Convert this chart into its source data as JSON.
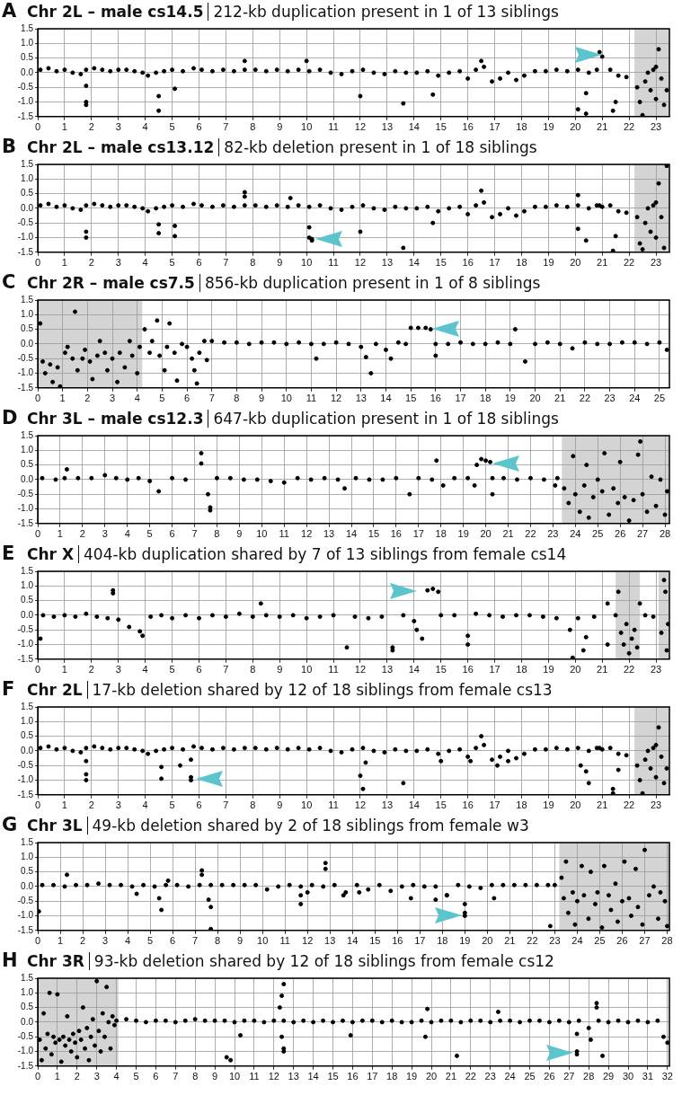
{
  "chart_data": [
    {
      "type": "scatter",
      "title": "Chr 2L – male cs14.5",
      "subtitle": "212-kb duplication present in 1 of 13 siblings",
      "annotations": [
        "A"
      ],
      "color": "#000000",
      "marker": "circle",
      "grid": true,
      "x": [
        0.1,
        0.4,
        0.7,
        1.0,
        1.3,
        1.6,
        1.8,
        2.1,
        2.4,
        2.7,
        3.0,
        3.3,
        3.6,
        3.9,
        4.1,
        4.4,
        4.7,
        5.0,
        5.4,
        5.8,
        6.1,
        6.5,
        6.9,
        7.3,
        7.7,
        8.1,
        8.5,
        8.9,
        9.3,
        9.7,
        10.1,
        10.5,
        10.9,
        11.3,
        11.7,
        12.1,
        12.5,
        12.9,
        13.3,
        13.7,
        14.1,
        14.5,
        14.9,
        15.3,
        15.7,
        16.0,
        16.3,
        16.6,
        16.9,
        17.2,
        17.5,
        17.8,
        18.1,
        18.5,
        18.9,
        19.3,
        19.7,
        20.1,
        20.5,
        20.8,
        20.9,
        21.0,
        21.3,
        21.6,
        21.9,
        1.8,
        1.8,
        1.8,
        4.5,
        4.5,
        5.1,
        7.7,
        10.0,
        12.0,
        13.6,
        14.7,
        16.5,
        20.1,
        20.4,
        20.4,
        21.5,
        21.4,
        22.3,
        22.4,
        22.5,
        22.6,
        22.7,
        22.8,
        22.9,
        23.0,
        23.0,
        23.1,
        23.2,
        23.3,
        23.4
      ],
      "values": [
        0.1,
        0.15,
        0.05,
        0.1,
        0.0,
        -0.05,
        0.1,
        0.15,
        0.1,
        0.05,
        0.1,
        0.1,
        0.05,
        0.0,
        -0.1,
        0.0,
        0.05,
        0.1,
        0.05,
        0.15,
        0.1,
        0.05,
        0.1,
        0.05,
        0.1,
        0.1,
        0.05,
        0.1,
        0.05,
        0.1,
        0.05,
        0.1,
        0.0,
        -0.05,
        0.05,
        0.1,
        0.0,
        -0.05,
        0.05,
        0.0,
        0.0,
        0.05,
        -0.1,
        0.0,
        0.05,
        -0.2,
        0.1,
        0.2,
        -0.3,
        -0.2,
        0.0,
        -0.25,
        -0.1,
        0.05,
        0.05,
        0.1,
        0.05,
        0.1,
        0.0,
        0.1,
        0.7,
        0.55,
        0.1,
        -0.1,
        -0.15,
        -1.0,
        -1.1,
        -0.45,
        -1.3,
        -0.8,
        -0.55,
        0.4,
        0.4,
        -0.8,
        -1.05,
        -0.75,
        0.4,
        -1.25,
        -1.4,
        -0.7,
        -1.0,
        -1.3,
        -0.5,
        -1.0,
        -1.45,
        -0.3,
        0.0,
        -0.6,
        0.1,
        -0.9,
        0.2,
        0.8,
        -0.2,
        -1.1,
        -0.6
      ],
      "xlim": [
        0,
        23.5
      ],
      "xticks": [
        0,
        1,
        2,
        3,
        4,
        5,
        6,
        7,
        8,
        9,
        10,
        11,
        12,
        13,
        14,
        15,
        16,
        17,
        18,
        19,
        20,
        21,
        22,
        23
      ],
      "ylim": [
        -1.5,
        1.5
      ],
      "yticks": [
        {
          "value": -1.5,
          "label": "-1.5"
        },
        {
          "value": -1,
          "label": "-1.0"
        },
        {
          "value": -0.5,
          "label": "-0.5"
        },
        {
          "value": 0,
          "label": "0.0"
        },
        {
          "value": 0.5,
          "label": "0.5"
        },
        {
          "value": 1,
          "label": "1.0"
        },
        {
          "value": 1.5,
          "label": "1.5"
        }
      ],
      "bands": [
        {
          "axis": "x",
          "from": 22.2,
          "to": 23.5,
          "color": "#d4d4d4"
        }
      ]
    },
    {
      "type": "scatter",
      "title": "Chr 2L – male cs13.12",
      "subtitle": "82-kb deletion present in 1 of 18 siblings",
      "annotations": [
        "B"
      ],
      "color": "#000000",
      "marker": "circle",
      "grid": true,
      "x": [
        0.1,
        0.4,
        0.7,
        1.0,
        1.3,
        1.6,
        1.8,
        2.1,
        2.4,
        2.7,
        3.0,
        3.3,
        3.6,
        3.9,
        4.1,
        4.4,
        4.7,
        5.0,
        5.4,
        5.8,
        6.1,
        6.5,
        6.9,
        7.3,
        7.7,
        8.1,
        8.5,
        8.9,
        9.3,
        9.7,
        10.1,
        10.5,
        10.9,
        11.3,
        11.7,
        12.1,
        12.5,
        12.9,
        13.3,
        13.7,
        14.1,
        14.5,
        14.9,
        15.3,
        15.7,
        16.0,
        16.3,
        16.6,
        16.9,
        17.2,
        17.5,
        17.8,
        18.1,
        18.5,
        18.9,
        19.3,
        19.7,
        20.1,
        20.5,
        20.8,
        20.9,
        21.0,
        21.3,
        21.6,
        21.9,
        1.8,
        1.8,
        4.5,
        4.5,
        5.1,
        5.1,
        7.7,
        7.7,
        9.4,
        10.1,
        10.1,
        10.2,
        10.2,
        12.0,
        13.6,
        14.7,
        16.5,
        20.1,
        20.1,
        20.4,
        21.4,
        21.5,
        22.3,
        22.4,
        22.5,
        22.6,
        22.7,
        22.8,
        22.9,
        23.0,
        23.0,
        23.1,
        23.2,
        23.3,
        23.4
      ],
      "values": [
        0.1,
        0.15,
        0.05,
        0.1,
        0.0,
        -0.05,
        0.1,
        0.15,
        0.1,
        0.05,
        0.1,
        0.1,
        0.05,
        0.0,
        -0.1,
        0.0,
        0.05,
        0.1,
        0.05,
        0.15,
        0.1,
        0.05,
        0.1,
        0.05,
        0.1,
        0.1,
        0.05,
        0.1,
        0.05,
        0.1,
        0.05,
        0.1,
        0.0,
        -0.05,
        0.05,
        0.1,
        0.0,
        -0.05,
        0.05,
        0.0,
        0.0,
        0.05,
        -0.1,
        0.0,
        0.05,
        -0.2,
        0.1,
        0.2,
        -0.3,
        -0.2,
        0.0,
        -0.25,
        -0.1,
        0.05,
        0.05,
        0.1,
        0.05,
        0.1,
        0.0,
        0.1,
        0.1,
        0.05,
        0.1,
        -0.1,
        -0.15,
        -0.8,
        -1.0,
        -0.55,
        -0.85,
        -0.6,
        -0.95,
        0.55,
        0.4,
        0.35,
        -0.65,
        -1.0,
        -1.05,
        -1.1,
        -0.8,
        -1.35,
        -0.5,
        0.6,
        0.45,
        -0.7,
        -1.1,
        -1.45,
        -0.95,
        -0.3,
        -1.2,
        -1.4,
        -0.5,
        0.0,
        -0.8,
        0.1,
        -1.0,
        0.2,
        0.85,
        -0.3,
        -1.35,
        1.45
      ],
      "xlim": [
        0,
        23.5
      ],
      "xticks": [
        0,
        1,
        2,
        3,
        4,
        5,
        6,
        7,
        8,
        9,
        10,
        11,
        12,
        13,
        14,
        15,
        16,
        17,
        18,
        19,
        20,
        21,
        22,
        23
      ],
      "ylim": [
        -1.5,
        1.5
      ],
      "yticks": [
        {
          "value": -1.5,
          "label": "-1.5"
        },
        {
          "value": -1,
          "label": "-1.0"
        },
        {
          "value": -0.5,
          "label": "-0.5"
        },
        {
          "value": 0,
          "label": "0.0"
        },
        {
          "value": 0.5,
          "label": "0.5"
        },
        {
          "value": 1,
          "label": "1.0"
        },
        {
          "value": 1.5,
          "label": "1.5"
        }
      ],
      "bands": [
        {
          "axis": "x",
          "from": 22.2,
          "to": 23.5,
          "color": "#d4d4d4"
        }
      ]
    },
    {
      "type": "scatter",
      "title": "Chr 2R – male cs7.5",
      "subtitle": "856-kb duplication present in 1 of 8 siblings",
      "annotations": [
        "C"
      ],
      "color": "#000000",
      "marker": "circle",
      "grid": true,
      "x": [
        0.1,
        0.2,
        0.3,
        0.5,
        0.6,
        0.8,
        0.9,
        1.1,
        1.2,
        1.4,
        1.5,
        1.6,
        1.8,
        1.9,
        2.1,
        2.2,
        2.4,
        2.5,
        2.7,
        2.8,
        3.0,
        3.2,
        3.3,
        3.5,
        3.7,
        3.8,
        4.0,
        4.1,
        4.3,
        4.5,
        4.6,
        4.8,
        4.9,
        5.1,
        5.2,
        5.3,
        5.5,
        5.6,
        5.8,
        6.0,
        6.2,
        6.3,
        6.4,
        6.5,
        6.7,
        6.8,
        7.0,
        7.5,
        8.0,
        8.5,
        9.0,
        9.5,
        10.0,
        10.5,
        11.0,
        11.2,
        11.5,
        12.0,
        12.5,
        13.0,
        13.2,
        13.4,
        13.6,
        14.0,
        14.2,
        14.5,
        14.8,
        15.0,
        15.3,
        15.6,
        15.8,
        16.0,
        16.0,
        16.5,
        17.0,
        17.5,
        18.0,
        18.5,
        19.0,
        19.2,
        19.6,
        20.0,
        20.5,
        21.0,
        21.5,
        22.0,
        22.5,
        23.0,
        23.5,
        24.0,
        24.5,
        25.0,
        25.3
      ],
      "values": [
        0.7,
        -0.6,
        -1.0,
        -0.7,
        -1.3,
        -0.8,
        -1.45,
        -0.3,
        -0.1,
        -0.5,
        1.1,
        -0.9,
        -0.5,
        -0.2,
        -0.6,
        -1.2,
        -0.4,
        0.1,
        -0.3,
        -0.9,
        -0.5,
        -1.3,
        -0.3,
        -0.8,
        0.1,
        -0.4,
        -1.0,
        -0.1,
        0.5,
        -0.3,
        0.1,
        0.8,
        -0.4,
        -0.9,
        -0.1,
        0.7,
        -0.3,
        -1.25,
        0.0,
        -0.1,
        -0.5,
        -0.9,
        -1.35,
        -0.3,
        0.1,
        -0.55,
        0.1,
        0.05,
        0.05,
        0.0,
        0.05,
        0.05,
        0.0,
        0.05,
        0.0,
        -0.5,
        0.0,
        0.05,
        0.0,
        -0.1,
        -0.45,
        -1.0,
        0.0,
        -0.2,
        -0.5,
        0.05,
        0.0,
        0.55,
        0.55,
        0.55,
        0.5,
        0.0,
        -0.4,
        0.0,
        0.05,
        0.0,
        0.0,
        0.05,
        0.0,
        0.5,
        -0.6,
        0.0,
        0.05,
        0.0,
        -0.15,
        0.05,
        0.0,
        0.0,
        0.05,
        0.05,
        0.0,
        0.05,
        -0.2
      ],
      "xlim": [
        0,
        25.4
      ],
      "xticks": [
        0,
        1,
        2,
        3,
        4,
        5,
        6,
        7,
        8,
        9,
        10,
        11,
        12,
        13,
        14,
        15,
        16,
        17,
        18,
        19,
        20,
        21,
        22,
        23,
        24,
        25
      ],
      "ylim": [
        -1.5,
        1.5
      ],
      "yticks": [
        {
          "value": -1.5,
          "label": "-1.5"
        },
        {
          "value": -1,
          "label": "-1.0"
        },
        {
          "value": -0.5,
          "label": "-0.5"
        },
        {
          "value": 0,
          "label": "0.0"
        },
        {
          "value": 0.5,
          "label": "0.5"
        },
        {
          "value": 1,
          "label": "1.0"
        },
        {
          "value": 1.5,
          "label": "1.5"
        }
      ],
      "bands": [
        {
          "axis": "x",
          "from": 0,
          "to": 4.2,
          "color": "#d4d4d4"
        }
      ]
    },
    {
      "type": "scatter",
      "title": "Chr 3L – male cs12.3",
      "subtitle": "647-kb duplication present in 1 of 18 siblings",
      "annotations": [
        "D"
      ],
      "color": "#000000",
      "marker": "circle",
      "grid": true,
      "x": [
        0.2,
        0.8,
        1.2,
        1.3,
        1.8,
        2.4,
        3.0,
        3.5,
        4.0,
        4.5,
        5.0,
        5.4,
        6.0,
        6.6,
        7.3,
        7.3,
        7.6,
        7.7,
        7.7,
        8.0,
        8.6,
        9.2,
        9.8,
        10.4,
        11.0,
        11.6,
        12.2,
        12.8,
        13.4,
        13.7,
        14.2,
        14.8,
        15.4,
        16.0,
        16.6,
        17.0,
        17.6,
        17.8,
        18.1,
        18.6,
        19.2,
        19.5,
        19.6,
        19.8,
        20.0,
        20.2,
        20.3,
        20.3,
        20.8,
        21.4,
        22.0,
        22.6,
        23.1,
        23.2,
        23.5,
        23.7,
        23.9,
        24.0,
        24.2,
        24.4,
        24.5,
        24.6,
        24.8,
        25.0,
        25.2,
        25.3,
        25.5,
        25.7,
        25.9,
        26.0,
        26.2,
        26.4,
        26.6,
        26.8,
        26.9,
        27.0,
        27.2,
        27.4,
        27.6,
        27.8,
        28.0,
        28.1
      ],
      "values": [
        0.05,
        0.0,
        0.05,
        0.35,
        0.05,
        0.05,
        0.15,
        0.05,
        0.0,
        0.05,
        -0.05,
        -0.4,
        0.05,
        0.0,
        0.9,
        0.55,
        -0.5,
        -1.05,
        -0.95,
        0.05,
        0.05,
        0.0,
        0.0,
        -0.05,
        -0.1,
        0.05,
        0.0,
        0.05,
        0.0,
        -0.3,
        0.05,
        0.0,
        0.0,
        0.05,
        -0.5,
        0.05,
        0.0,
        0.65,
        -0.2,
        0.05,
        0.05,
        -0.2,
        0.5,
        0.7,
        0.65,
        0.6,
        0.05,
        -0.5,
        0.05,
        0.0,
        0.05,
        0.0,
        -0.2,
        0.05,
        -0.3,
        -0.8,
        0.8,
        -0.5,
        -1.1,
        -0.2,
        0.5,
        -1.3,
        -0.6,
        0.0,
        -0.4,
        0.9,
        -1.2,
        -0.3,
        -0.8,
        0.6,
        -0.6,
        -1.4,
        -0.7,
        0.85,
        1.3,
        -0.5,
        -1.1,
        0.1,
        -0.9,
        0.0,
        -1.2,
        -0.4
      ],
      "xlim": [
        0,
        28.2
      ],
      "xticks": [
        0,
        1,
        2,
        3,
        4,
        5,
        6,
        7,
        8,
        9,
        10,
        11,
        12,
        13,
        14,
        15,
        16,
        17,
        18,
        19,
        20,
        21,
        22,
        23,
        24,
        25,
        26,
        27,
        28
      ],
      "ylim": [
        -1.5,
        1.5
      ],
      "yticks": [
        {
          "value": -1.5,
          "label": "-1.5"
        },
        {
          "value": -1,
          "label": "-1.0"
        },
        {
          "value": -0.5,
          "label": "-0.5"
        },
        {
          "value": 0,
          "label": "0.0"
        },
        {
          "value": 0.5,
          "label": "0.5"
        },
        {
          "value": 1,
          "label": "1.0"
        },
        {
          "value": 1.5,
          "label": "1.5"
        }
      ],
      "bands": [
        {
          "axis": "x",
          "from": 23.4,
          "to": 28.2,
          "color": "#d4d4d4"
        }
      ]
    },
    {
      "type": "scatter",
      "title": "Chr X",
      "subtitle": "404-kb duplication shared by 7 of 13 siblings from female cs14",
      "annotations": [
        "E"
      ],
      "color": "#000000",
      "marker": "circle",
      "grid": true,
      "x": [
        0.1,
        0.2,
        0.6,
        1.0,
        1.4,
        1.8,
        2.2,
        2.6,
        2.8,
        2.8,
        3.0,
        3.4,
        3.8,
        3.9,
        4.2,
        4.6,
        5.0,
        5.5,
        6.0,
        6.5,
        7.0,
        7.5,
        8.0,
        8.3,
        8.5,
        9.0,
        9.5,
        10.0,
        10.5,
        11.0,
        11.5,
        11.8,
        12.3,
        12.8,
        13.2,
        13.2,
        13.6,
        14.0,
        14.1,
        14.3,
        14.5,
        14.7,
        14.9,
        15.0,
        15.5,
        16.0,
        16.0,
        16.3,
        16.8,
        17.3,
        17.8,
        18.3,
        18.8,
        19.3,
        19.8,
        19.9,
        20.1,
        20.3,
        20.4,
        20.7,
        21.2,
        21.2,
        21.5,
        21.6,
        21.7,
        21.8,
        21.9,
        22.0,
        22.1,
        22.2,
        22.3,
        22.4,
        22.6,
        22.9,
        23.2,
        23.3,
        23.35,
        23.4,
        23.45
      ],
      "values": [
        -0.8,
        0.0,
        -0.05,
        0.0,
        -0.05,
        0.05,
        -0.05,
        -0.1,
        0.85,
        0.75,
        -0.15,
        -0.4,
        -0.55,
        -0.7,
        -0.05,
        0.0,
        -0.1,
        0.0,
        -0.1,
        0.0,
        -0.05,
        0.05,
        -0.05,
        0.4,
        0.0,
        -0.05,
        0.0,
        -0.1,
        -0.05,
        0.0,
        -1.1,
        -0.05,
        -0.1,
        -0.05,
        -1.2,
        -1.1,
        0.0,
        -0.2,
        -0.5,
        -0.8,
        0.85,
        0.9,
        0.8,
        0.0,
        0.0,
        -0.7,
        -1.0,
        0.05,
        0.0,
        -0.05,
        0.0,
        0.0,
        -0.05,
        -0.1,
        -0.5,
        -1.45,
        -0.1,
        -1.2,
        -0.75,
        -0.05,
        -1.0,
        0.4,
        0.0,
        0.8,
        -0.6,
        -1.0,
        -0.3,
        -1.3,
        -0.8,
        -0.5,
        -1.1,
        0.4,
        0.0,
        -0.05,
        -0.6,
        1.2,
        0.8,
        -1.2,
        -0.3
      ],
      "xlim": [
        0,
        23.5
      ],
      "xticks": [
        0,
        1,
        2,
        3,
        4,
        5,
        6,
        7,
        8,
        9,
        10,
        11,
        12,
        13,
        14,
        15,
        16,
        17,
        18,
        19,
        20,
        21,
        22,
        23
      ],
      "ylim": [
        -1.5,
        1.5
      ],
      "yticks": [
        {
          "value": -1.5,
          "label": "-1.5"
        },
        {
          "value": -1,
          "label": "-1.0"
        },
        {
          "value": -0.5,
          "label": "-0.5"
        },
        {
          "value": 0,
          "label": "0.0"
        },
        {
          "value": 0.5,
          "label": "0.5"
        },
        {
          "value": 1,
          "label": "1.0"
        },
        {
          "value": 1.5,
          "label": "1.5"
        }
      ],
      "bands": [
        {
          "axis": "x",
          "from": 21.5,
          "to": 22.4,
          "color": "#d4d4d4"
        },
        {
          "axis": "x",
          "from": 23.1,
          "to": 23.5,
          "color": "#d4d4d4"
        }
      ]
    },
    {
      "type": "scatter",
      "title": "Chr 2L",
      "subtitle": "17-kb deletion shared by 12 of 18 siblings from female cs13",
      "annotations": [
        "F"
      ],
      "color": "#000000",
      "marker": "circle",
      "grid": true,
      "x": [
        0.1,
        0.4,
        0.7,
        1.0,
        1.3,
        1.6,
        1.8,
        2.1,
        2.4,
        2.7,
        3.0,
        3.3,
        3.6,
        3.9,
        4.1,
        4.4,
        4.7,
        5.0,
        5.4,
        5.8,
        6.1,
        6.5,
        6.9,
        7.3,
        7.7,
        8.1,
        8.5,
        8.9,
        9.3,
        9.7,
        10.1,
        10.5,
        10.9,
        11.3,
        11.7,
        12.1,
        12.5,
        12.9,
        13.3,
        13.7,
        14.1,
        14.5,
        14.9,
        15.3,
        15.7,
        16.0,
        16.3,
        16.6,
        16.9,
        17.2,
        17.5,
        17.8,
        18.1,
        18.5,
        18.9,
        19.3,
        19.7,
        20.1,
        20.5,
        20.8,
        20.9,
        21.0,
        21.3,
        21.6,
        21.9,
        1.8,
        1.8,
        1.8,
        4.6,
        4.6,
        5.3,
        5.7,
        5.7,
        5.7,
        12.0,
        12.1,
        12.2,
        13.6,
        15.0,
        16.5,
        16.1,
        17.1,
        17.5,
        20.2,
        20.4,
        20.5,
        21.4,
        21.6,
        21.4,
        22.3,
        22.4,
        22.5,
        22.6,
        22.7,
        22.8,
        22.9,
        23.0,
        23.0,
        23.1,
        23.2,
        23.3,
        23.4
      ],
      "values": [
        0.1,
        0.15,
        0.05,
        0.1,
        0.0,
        -0.05,
        0.1,
        0.15,
        0.1,
        0.05,
        0.1,
        0.1,
        0.05,
        0.0,
        -0.1,
        0.0,
        0.05,
        0.1,
        0.05,
        0.15,
        0.1,
        0.05,
        0.1,
        0.05,
        0.1,
        0.1,
        0.05,
        0.1,
        0.05,
        0.1,
        0.05,
        0.1,
        0.0,
        -0.05,
        0.05,
        0.1,
        0.0,
        -0.05,
        0.05,
        0.0,
        0.0,
        0.05,
        -0.1,
        0.0,
        0.05,
        -0.2,
        0.1,
        0.2,
        -0.3,
        -0.2,
        0.0,
        -0.25,
        -0.1,
        0.05,
        0.05,
        0.1,
        0.05,
        0.1,
        0.0,
        0.1,
        0.1,
        0.05,
        0.1,
        -0.1,
        -0.15,
        -0.8,
        -1.0,
        -0.35,
        -0.55,
        -0.95,
        -0.5,
        -0.9,
        -1.0,
        -0.3,
        -0.85,
        -1.3,
        -0.4,
        -1.1,
        -0.35,
        0.5,
        -0.35,
        -0.5,
        -0.35,
        -0.5,
        -0.7,
        -1.1,
        -1.3,
        -0.65,
        -1.45,
        -0.5,
        -1.0,
        -1.45,
        -0.3,
        0.0,
        -0.6,
        0.1,
        -0.9,
        0.2,
        0.8,
        -0.2,
        -1.1,
        -0.6
      ],
      "xlim": [
        0,
        23.5
      ],
      "xticks": [
        0,
        1,
        2,
        3,
        4,
        5,
        6,
        7,
        8,
        9,
        10,
        11,
        12,
        13,
        14,
        15,
        16,
        17,
        18,
        19,
        20,
        21,
        22,
        23
      ],
      "ylim": [
        -1.5,
        1.5
      ],
      "yticks": [
        {
          "value": -1.5,
          "label": "-1.5"
        },
        {
          "value": -1,
          "label": "-1.0"
        },
        {
          "value": -0.5,
          "label": "-0.5"
        },
        {
          "value": 0,
          "label": "0.0"
        },
        {
          "value": 0.5,
          "label": "0.5"
        },
        {
          "value": 1,
          "label": "1.0"
        },
        {
          "value": 1.5,
          "label": "1.5"
        }
      ],
      "bands": [
        {
          "axis": "x",
          "from": 22.2,
          "to": 23.5,
          "color": "#d4d4d4"
        }
      ]
    },
    {
      "type": "scatter",
      "title": "Chr 3L",
      "subtitle": "49-kb deletion shared by 2 of 18 siblings from female w3",
      "annotations": [
        "G"
      ],
      "color": "#000000",
      "marker": "circle",
      "grid": true,
      "x": [
        0.2,
        0.7,
        1.2,
        1.7,
        2.2,
        2.7,
        3.2,
        3.7,
        4.2,
        4.7,
        5.2,
        5.7,
        6.2,
        6.7,
        7.2,
        7.7,
        8.2,
        8.7,
        9.2,
        9.7,
        10.2,
        10.7,
        11.2,
        11.7,
        12.2,
        12.7,
        13.2,
        13.7,
        14.2,
        14.7,
        15.2,
        15.7,
        16.2,
        16.7,
        17.2,
        17.7,
        18.2,
        18.7,
        19.2,
        19.7,
        20.2,
        20.7,
        21.2,
        21.7,
        22.2,
        22.7,
        23.0,
        0.05,
        1.3,
        4.4,
        5.4,
        5.5,
        5.8,
        7.3,
        7.3,
        7.6,
        7.7,
        7.7,
        11.7,
        11.7,
        12.0,
        12.8,
        12.8,
        13.6,
        14.3,
        16.6,
        17.7,
        18.2,
        19.0,
        19.0,
        19.0,
        20.3,
        22.8,
        23.3,
        23.4,
        23.5,
        23.6,
        23.8,
        23.9,
        24.0,
        24.2,
        24.3,
        24.5,
        24.6,
        24.8,
        24.9,
        25.1,
        25.2,
        25.4,
        25.5,
        25.7,
        25.8,
        26.0,
        26.1,
        26.3,
        26.4,
        26.6,
        26.7,
        26.9,
        27.0,
        27.2,
        27.4,
        27.6,
        27.7,
        27.9,
        28.0
      ],
      "values": [
        0.05,
        0.05,
        0.0,
        0.05,
        0.05,
        0.1,
        0.05,
        0.05,
        0.0,
        0.05,
        0.0,
        0.05,
        0.05,
        0.0,
        0.05,
        0.05,
        0.05,
        0.05,
        0.05,
        0.05,
        -0.1,
        0.0,
        0.05,
        0.0,
        0.05,
        0.0,
        0.05,
        -0.2,
        0.05,
        -0.1,
        0.05,
        -0.15,
        0.0,
        0.05,
        0.0,
        0.0,
        -0.3,
        0.05,
        0.0,
        -0.05,
        0.05,
        0.05,
        0.05,
        0.05,
        0.05,
        0.05,
        0.05,
        -0.85,
        0.4,
        -0.25,
        -0.4,
        -0.8,
        0.2,
        0.55,
        0.4,
        -0.45,
        -0.7,
        -1.45,
        -0.6,
        -0.3,
        -0.2,
        0.8,
        0.6,
        -0.3,
        -0.2,
        -0.4,
        -0.45,
        -0.3,
        -0.9,
        -1.0,
        -0.6,
        -0.4,
        -1.35,
        0.3,
        -0.4,
        0.85,
        -0.9,
        -0.2,
        -1.3,
        -0.5,
        0.7,
        -0.3,
        -1.1,
        0.5,
        -0.6,
        -0.2,
        -1.4,
        0.7,
        -0.3,
        -0.8,
        0.1,
        -1.2,
        -0.5,
        0.85,
        -0.4,
        -1.0,
        0.6,
        -0.7,
        -1.3,
        1.25,
        -0.3,
        0.0,
        -1.1,
        -0.2,
        -0.5,
        -1.35
      ],
      "xlim": [
        0,
        28.1
      ],
      "xticks": [
        0,
        1,
        2,
        3,
        4,
        5,
        6,
        7,
        8,
        9,
        10,
        11,
        12,
        13,
        14,
        15,
        16,
        17,
        18,
        19,
        20,
        21,
        22,
        23,
        24,
        25,
        26,
        27,
        28
      ],
      "ylim": [
        -1.5,
        1.5
      ],
      "yticks": [
        {
          "value": -1.5,
          "label": "-1.5"
        },
        {
          "value": -1,
          "label": "-1.0"
        },
        {
          "value": -0.5,
          "label": "-0.5"
        },
        {
          "value": 0,
          "label": "0.0"
        },
        {
          "value": 0.5,
          "label": "0.5"
        },
        {
          "value": 1,
          "label": "1.0"
        },
        {
          "value": 1.5,
          "label": "1.5"
        }
      ],
      "bands": [
        {
          "axis": "x",
          "from": 23.2,
          "to": 28.1,
          "color": "#d4d4d4"
        }
      ]
    },
    {
      "type": "scatter",
      "title": "Chr 3R",
      "subtitle": "93-kb deletion shared by 12 of 18 siblings from female cs12",
      "annotations": [
        "H"
      ],
      "color": "#000000",
      "marker": "circle",
      "grid": true,
      "x": [
        0.1,
        0.2,
        0.3,
        0.4,
        0.5,
        0.6,
        0.7,
        0.8,
        0.9,
        1.0,
        1.1,
        1.2,
        1.3,
        1.4,
        1.5,
        1.6,
        1.7,
        1.8,
        1.9,
        2.0,
        2.1,
        2.2,
        2.3,
        2.4,
        2.5,
        2.6,
        2.7,
        2.8,
        2.9,
        3.0,
        3.1,
        3.2,
        3.3,
        3.4,
        3.5,
        3.6,
        3.7,
        3.8,
        3.9,
        4.0,
        4.5,
        5.0,
        5.5,
        6.0,
        6.5,
        7.0,
        7.5,
        8.0,
        8.5,
        9.0,
        9.5,
        10.0,
        10.5,
        11.0,
        11.5,
        12.0,
        12.5,
        13.0,
        13.5,
        14.0,
        14.5,
        15.0,
        15.5,
        16.0,
        16.5,
        17.0,
        17.5,
        18.0,
        18.5,
        19.0,
        19.5,
        20.0,
        20.5,
        21.0,
        21.5,
        22.0,
        22.5,
        23.0,
        23.5,
        24.0,
        24.5,
        25.0,
        25.5,
        26.0,
        26.5,
        27.0,
        27.5,
        28.0,
        28.5,
        29.0,
        29.5,
        30.0,
        30.5,
        31.0,
        31.5,
        9.6,
        9.8,
        10.3,
        12.3,
        12.4,
        12.5,
        12.4,
        12.5,
        12.5,
        15.9,
        19.8,
        19.7,
        21.3,
        23.4,
        27.4,
        27.4,
        27.4,
        28.1,
        28.4,
        28.4,
        28.7,
        31.8,
        32.0
      ],
      "values": [
        -0.6,
        -1.3,
        0.3,
        -0.9,
        -0.4,
        1.0,
        -1.1,
        -0.5,
        -0.7,
        0.95,
        -0.6,
        -1.35,
        -0.5,
        -0.8,
        0.2,
        -0.6,
        -1.0,
        -0.4,
        -0.7,
        -1.2,
        -0.3,
        -0.6,
        0.5,
        -0.9,
        -0.2,
        -1.3,
        -0.5,
        0.1,
        -0.8,
        1.4,
        -0.3,
        -1.0,
        0.3,
        -0.5,
        1.2,
        0.0,
        -0.9,
        0.2,
        -0.1,
        0.05,
        0.1,
        0.05,
        0.0,
        0.05,
        0.05,
        0.0,
        0.05,
        0.1,
        0.05,
        0.05,
        0.05,
        0.0,
        0.05,
        0.05,
        0.0,
        0.05,
        0.05,
        0.0,
        0.05,
        0.0,
        0.05,
        0.0,
        0.05,
        0.0,
        0.05,
        0.05,
        0.0,
        0.05,
        0.0,
        0.0,
        0.05,
        0.0,
        0.05,
        0.05,
        0.0,
        0.05,
        0.05,
        0.0,
        0.05,
        0.05,
        0.0,
        0.05,
        0.05,
        0.0,
        0.05,
        0.0,
        0.05,
        -0.2,
        0.05,
        0.0,
        0.05,
        0.0,
        0.05,
        0.0,
        0.05,
        -1.2,
        -1.3,
        -0.45,
        0.5,
        0.9,
        1.3,
        -0.5,
        -0.9,
        -1.0,
        -0.45,
        0.45,
        -0.5,
        -1.15,
        0.35,
        -1.0,
        -1.1,
        -0.4,
        -0.6,
        0.65,
        0.5,
        -1.15,
        -0.5,
        -0.7
      ],
      "xlim": [
        0,
        32.1
      ],
      "xticks": [
        0,
        1,
        2,
        3,
        4,
        5,
        6,
        7,
        8,
        9,
        10,
        11,
        12,
        13,
        14,
        15,
        16,
        17,
        18,
        19,
        20,
        21,
        22,
        23,
        24,
        25,
        26,
        27,
        28,
        29,
        30,
        31,
        32
      ],
      "ylim": [
        -1.5,
        1.5
      ],
      "yticks": [
        {
          "value": -1.5,
          "label": "-1.5"
        },
        {
          "value": -1,
          "label": "-1.0"
        },
        {
          "value": -0.5,
          "label": "-0.5"
        },
        {
          "value": 0,
          "label": "0.0"
        },
        {
          "value": 0.5,
          "label": "0.5"
        },
        {
          "value": 1,
          "label": "1.0"
        },
        {
          "value": 1.5,
          "label": "1.5"
        }
      ],
      "bands": [
        {
          "axis": "x",
          "from": 0,
          "to": 4.1,
          "color": "#d4d4d4"
        }
      ]
    }
  ]
}
